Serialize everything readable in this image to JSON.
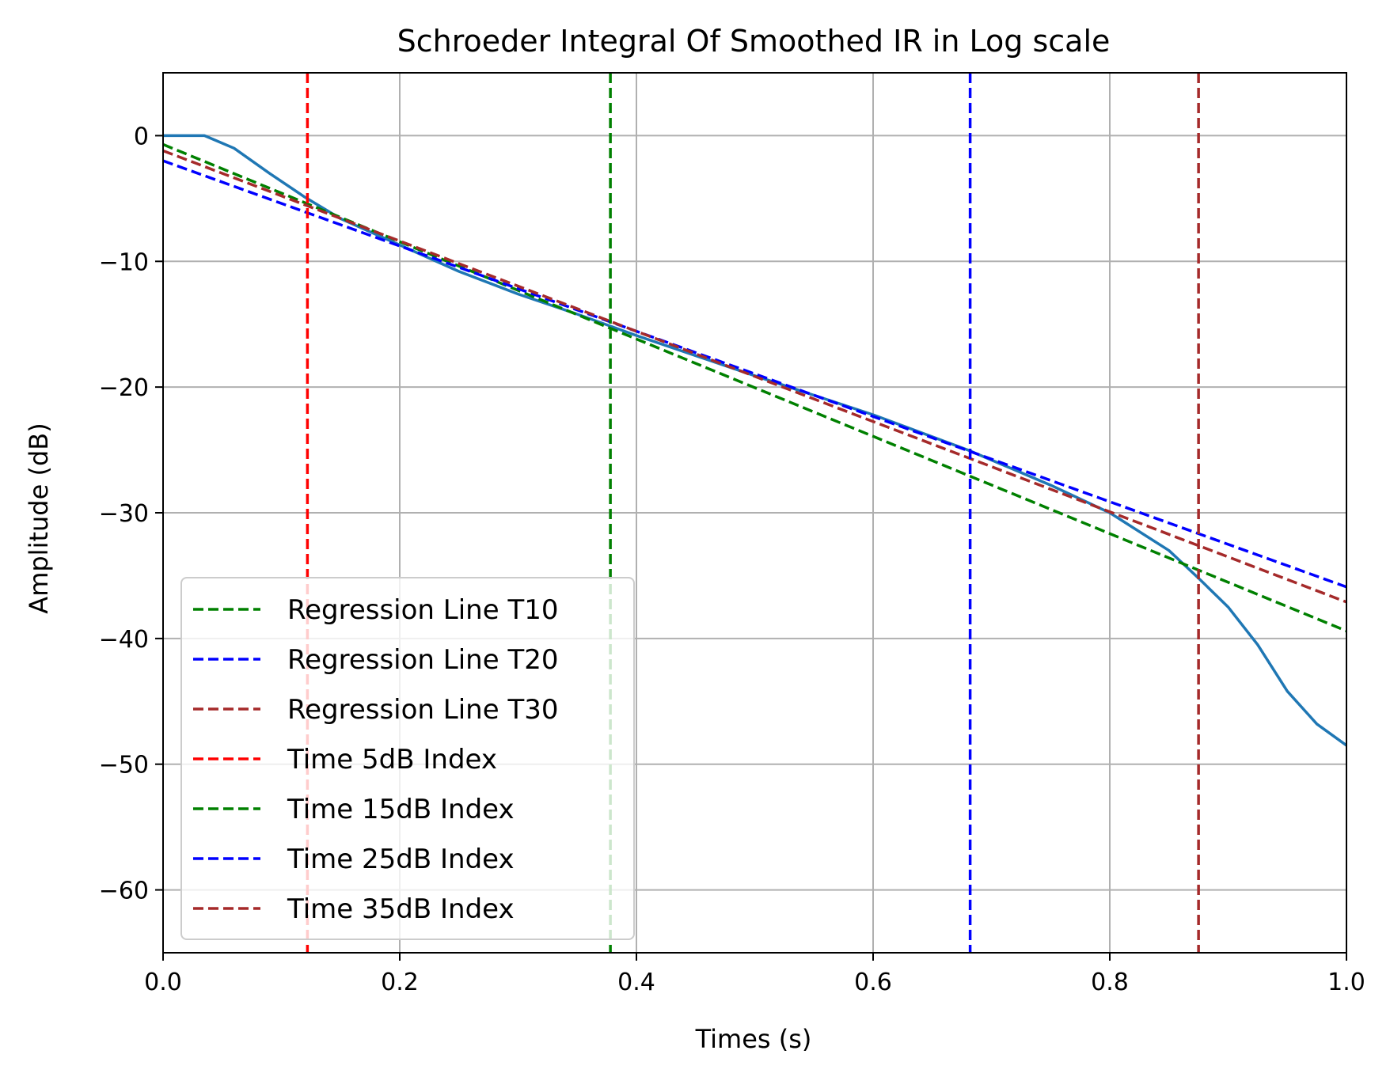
{
  "chart_data": {
    "type": "line",
    "title": "Schroeder Integral Of Smoothed IR in Log scale",
    "xlabel": "Times (s)",
    "ylabel": "Amplitude (dB)",
    "xlim": [
      0.0,
      1.0
    ],
    "ylim": [
      -65,
      5
    ],
    "x_ticks": [
      0.0,
      0.2,
      0.4,
      0.6,
      0.8,
      1.0
    ],
    "x_tick_labels": [
      "0.0",
      "0.2",
      "0.4",
      "0.6",
      "0.8",
      "1.0"
    ],
    "y_ticks": [
      0,
      -10,
      -20,
      -30,
      -40,
      -50,
      -60
    ],
    "y_tick_labels": [
      "0",
      "−10",
      "−20",
      "−30",
      "−40",
      "−50",
      "−60"
    ],
    "grid": true,
    "legend_position": "lower-left",
    "series": [
      {
        "style": "solid",
        "color": "#1f77b4",
        "x": [
          0.0,
          0.035,
          0.06,
          0.09,
          0.12,
          0.15,
          0.2,
          0.25,
          0.3,
          0.35,
          0.4,
          0.5,
          0.6,
          0.68,
          0.75,
          0.8,
          0.85,
          0.875,
          0.9,
          0.925,
          0.95,
          0.975,
          1.0
        ],
        "y": [
          0.0,
          0.0,
          -1.0,
          -3.0,
          -4.9,
          -6.6,
          -8.7,
          -10.8,
          -12.6,
          -14.2,
          -15.9,
          -19.1,
          -22.2,
          -25.0,
          -27.8,
          -30.0,
          -33.0,
          -35.2,
          -37.5,
          -40.5,
          -44.2,
          -46.8,
          -48.5
        ]
      },
      {
        "name": "Regression Line T10",
        "style": "dashed",
        "color": "#008000",
        "x": [
          0.0,
          1.0
        ],
        "y": [
          -0.7,
          -39.4
        ]
      },
      {
        "name": "Regression Line T20",
        "style": "dashed",
        "color": "#0000ff",
        "x": [
          0.0,
          1.0
        ],
        "y": [
          -2.0,
          -35.9
        ]
      },
      {
        "name": "Regression Line T30",
        "style": "dashed",
        "color": "#a52a2a",
        "x": [
          0.0,
          1.0
        ],
        "y": [
          -1.2,
          -37.1
        ]
      },
      {
        "name": "Time 5dB Index",
        "style": "dashed-vertical",
        "color": "#ff0000",
        "x_value": 0.122
      },
      {
        "name": "Time 15dB Index",
        "style": "dashed-vertical",
        "color": "#008000",
        "x_value": 0.378
      },
      {
        "name": "Time 25dB Index",
        "style": "dashed-vertical",
        "color": "#0000ff",
        "x_value": 0.682
      },
      {
        "name": "Time 35dB Index",
        "style": "dashed-vertical",
        "color": "#a52a2a",
        "x_value": 0.875
      }
    ]
  }
}
